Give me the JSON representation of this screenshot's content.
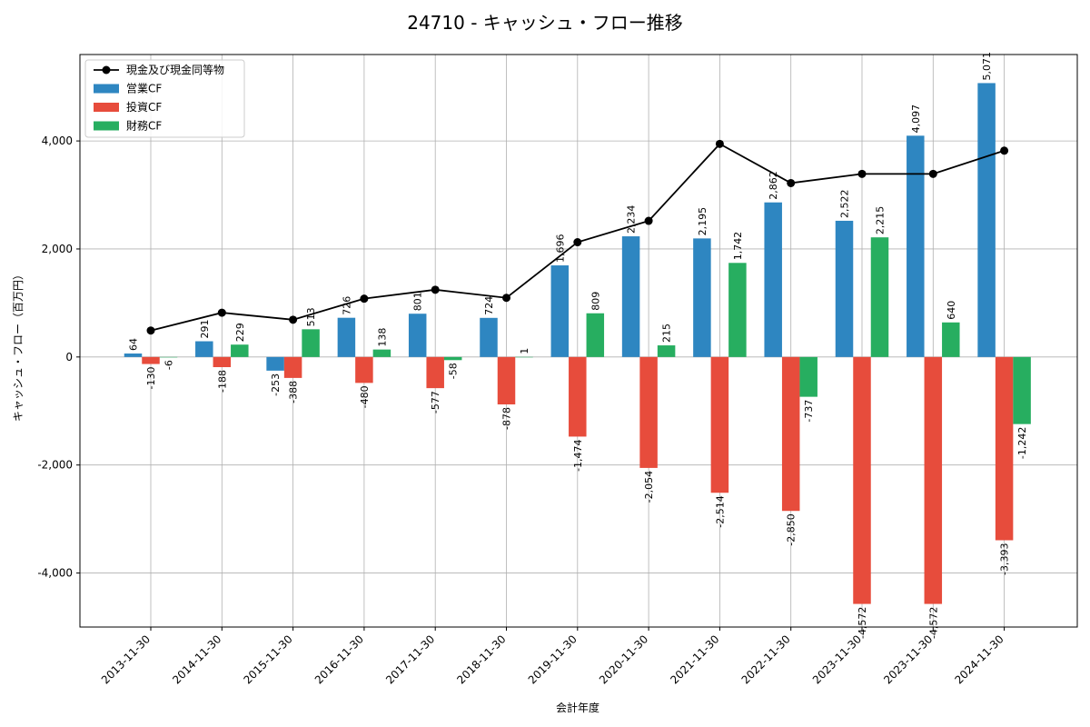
{
  "chart_data": {
    "type": "bar",
    "title": "24710 - キャッシュ・フロー推移",
    "xlabel": "会計年度",
    "ylabel": "キャッシュ・フロー（百万円）",
    "categories": [
      "2013-11-30",
      "2014-11-30",
      "2015-11-30",
      "2016-11-30",
      "2017-11-30",
      "2018-11-30",
      "2019-11-30",
      "2020-11-30",
      "2021-11-30",
      "2022-11-30",
      "2023-11-30",
      "2023-11-30",
      "2024-11-30"
    ],
    "ylim": [
      -5000,
      5600
    ],
    "yticks": [
      -4000,
      -2000,
      0,
      2000,
      4000
    ],
    "ytick_labels": [
      "-4,000",
      "-2,000",
      "0",
      "2,000",
      "4,000"
    ],
    "grid": true,
    "legend_position": "top-left",
    "series": [
      {
        "name": "営業CF",
        "kind": "bar",
        "color": "#2e86c1",
        "values": [
          64,
          291,
          -253,
          726,
          801,
          724,
          1696,
          2234,
          2195,
          2862,
          2522,
          4097,
          5071
        ],
        "labels": [
          "64",
          "291",
          "-253",
          "726",
          "801",
          "724",
          "1,696",
          "2,234",
          "2,195",
          "2,862",
          "2,522",
          "4,097",
          "5,071"
        ]
      },
      {
        "name": "投資CF",
        "kind": "bar",
        "color": "#e74c3c",
        "values": [
          -130,
          -188,
          -388,
          -480,
          -577,
          -878,
          -1474,
          -2054,
          -2514,
          -2850,
          -4572,
          -4572,
          -3393
        ],
        "labels": [
          "-130",
          "-188",
          "-388",
          "-480",
          "-577",
          "-878",
          "-1,474",
          "-2,054",
          "-2,514",
          "-2,850",
          "-4,572",
          "-4,572",
          "-3,393"
        ]
      },
      {
        "name": "財務CF",
        "kind": "bar",
        "color": "#27ae60",
        "values": [
          -6,
          229,
          513,
          138,
          -58,
          1,
          809,
          215,
          1742,
          -737,
          2215,
          640,
          -1242
        ],
        "labels": [
          "-6",
          "229",
          "513",
          "138",
          "-58",
          "1",
          "809",
          "215",
          "1,742",
          "-737",
          "2,215",
          "640",
          "-1,242"
        ]
      },
      {
        "name": "現金及び現金同等物",
        "kind": "line",
        "color": "#000000",
        "values": [
          490,
          820,
          690,
          1080,
          1245,
          1095,
          2125,
          2520,
          3945,
          3220,
          3390,
          3390,
          3820
        ]
      }
    ]
  }
}
